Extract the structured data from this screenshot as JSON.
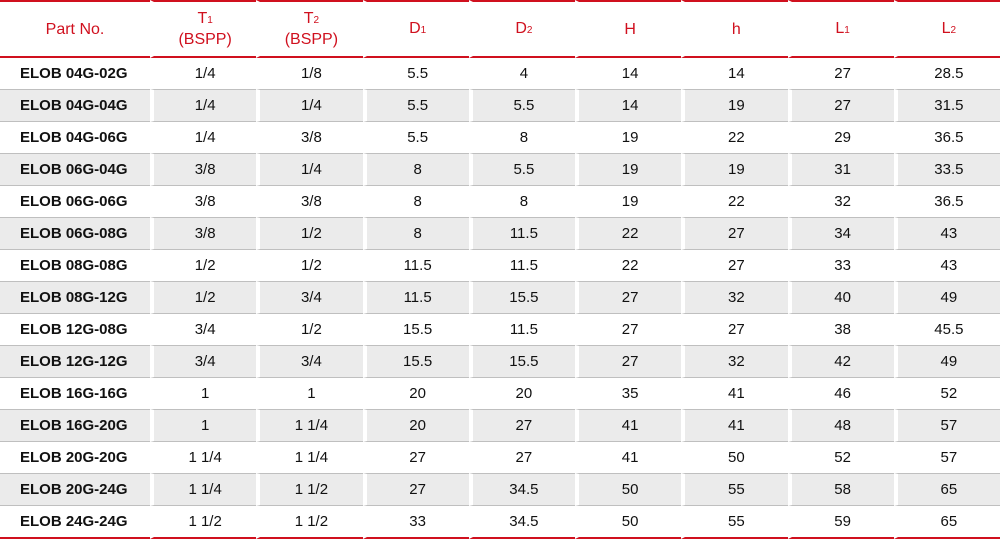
{
  "table": {
    "headers": [
      {
        "main": "Part No.",
        "sub": "",
        "line2": ""
      },
      {
        "main": "T",
        "sub": "1",
        "line2": "(BSPP)"
      },
      {
        "main": "T",
        "sub": "2",
        "line2": "(BSPP)"
      },
      {
        "main": "D",
        "sub": "1",
        "line2": ""
      },
      {
        "main": "D",
        "sub": "2",
        "line2": ""
      },
      {
        "main": "H",
        "sub": "",
        "line2": ""
      },
      {
        "main": "h",
        "sub": "",
        "line2": ""
      },
      {
        "main": "L",
        "sub": "1",
        "line2": ""
      },
      {
        "main": "L",
        "sub": "2",
        "line2": ""
      }
    ],
    "rows": [
      [
        "ELOB 04G-02G",
        "1/4",
        "1/8",
        "5.5",
        "4",
        "14",
        "14",
        "27",
        "28.5"
      ],
      [
        "ELOB 04G-04G",
        "1/4",
        "1/4",
        "5.5",
        "5.5",
        "14",
        "19",
        "27",
        "31.5"
      ],
      [
        "ELOB 04G-06G",
        "1/4",
        "3/8",
        "5.5",
        "8",
        "19",
        "22",
        "29",
        "36.5"
      ],
      [
        "ELOB 06G-04G",
        "3/8",
        "1/4",
        "8",
        "5.5",
        "19",
        "19",
        "31",
        "33.5"
      ],
      [
        "ELOB 06G-06G",
        "3/8",
        "3/8",
        "8",
        "8",
        "19",
        "22",
        "32",
        "36.5"
      ],
      [
        "ELOB 06G-08G",
        "3/8",
        "1/2",
        "8",
        "11.5",
        "22",
        "27",
        "34",
        "43"
      ],
      [
        "ELOB 08G-08G",
        "1/2",
        "1/2",
        "11.5",
        "11.5",
        "22",
        "27",
        "33",
        "43"
      ],
      [
        "ELOB 08G-12G",
        "1/2",
        "3/4",
        "11.5",
        "15.5",
        "27",
        "32",
        "40",
        "49"
      ],
      [
        "ELOB 12G-08G",
        "3/4",
        "1/2",
        "15.5",
        "11.5",
        "27",
        "27",
        "38",
        "45.5"
      ],
      [
        "ELOB 12G-12G",
        "3/4",
        "3/4",
        "15.5",
        "15.5",
        "27",
        "32",
        "42",
        "49"
      ],
      [
        "ELOB 16G-16G",
        "1",
        "1",
        "20",
        "20",
        "35",
        "41",
        "46",
        "52"
      ],
      [
        "ELOB 16G-20G",
        "1",
        "1 1/4",
        "20",
        "27",
        "41",
        "41",
        "48",
        "57"
      ],
      [
        "ELOB 20G-20G",
        "1 1/4",
        "1 1/4",
        "27",
        "27",
        "41",
        "50",
        "52",
        "57"
      ],
      [
        "ELOB 20G-24G",
        "1 1/4",
        "1 1/2",
        "27",
        "34.5",
        "50",
        "55",
        "58",
        "65"
      ],
      [
        "ELOB 24G-24G",
        "1 1/2",
        "1 1/2",
        "33",
        "34.5",
        "50",
        "55",
        "59",
        "65"
      ]
    ]
  },
  "colors": {
    "accent": "#d0101e",
    "stripe": "#ebebeb"
  }
}
